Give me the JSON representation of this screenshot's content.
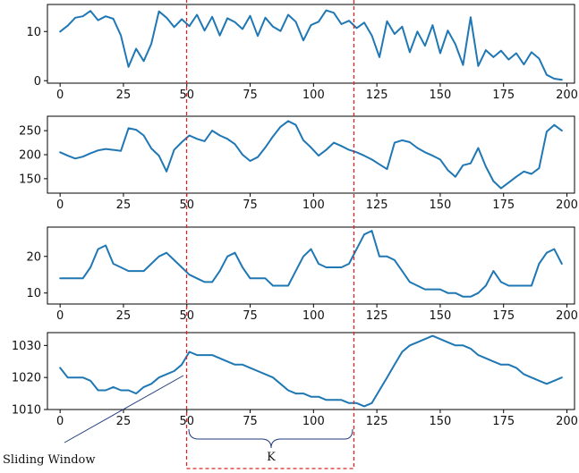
{
  "colors": {
    "line": "#1f77b4",
    "window": "#d62728",
    "annotation": "#1f3b7a",
    "frame": "#000000"
  },
  "annotations": {
    "sliding_window": "Sliding Window",
    "window_length": "K"
  },
  "chart_data": [
    {
      "type": "line",
      "xlim": [
        -5,
        203
      ],
      "ylim": [
        -0.5,
        15.5
      ],
      "xticks": [
        0,
        25,
        50,
        75,
        100,
        125,
        150,
        175,
        200
      ],
      "yticks": [
        0,
        10
      ],
      "x": [
        0,
        3,
        6,
        9,
        12,
        15,
        18,
        21,
        24,
        27,
        30,
        33,
        36,
        39,
        42,
        45,
        48,
        51,
        54,
        57,
        60,
        63,
        66,
        69,
        72,
        75,
        78,
        81,
        84,
        87,
        90,
        93,
        96,
        99,
        102,
        105,
        108,
        111,
        114,
        117,
        120,
        123,
        126,
        129,
        132,
        135,
        138,
        141,
        144,
        147,
        150,
        153,
        156,
        159,
        162,
        165,
        168,
        171,
        174,
        177,
        180,
        183,
        186,
        189,
        192,
        195,
        198
      ],
      "values": [
        10,
        11.2,
        12.8,
        13.1,
        14.2,
        12.3,
        13.1,
        12.6,
        9.2,
        2.8,
        6.5,
        4.0,
        7.5,
        14.1,
        12.8,
        10.9,
        12.5,
        11.1,
        13.4,
        10.2,
        13.0,
        9.2,
        12.7,
        11.9,
        10.5,
        13.2,
        9.1,
        12.8,
        11.0,
        10.1,
        13.4,
        12.0,
        8.2,
        11.3,
        12.0,
        14.3,
        13.8,
        11.5,
        12.2,
        10.7,
        11.8,
        9.2,
        4.8,
        12.1,
        9.5,
        11.0,
        5.8,
        10.0,
        7.1,
        11.3,
        5.6,
        10.2,
        7.4,
        3.2,
        12.9,
        3.0,
        6.2,
        4.8,
        6.1,
        4.3,
        5.6,
        3.3,
        5.8,
        4.5,
        1.2,
        0.4,
        0.2
      ]
    },
    {
      "type": "line",
      "xlim": [
        -5,
        203
      ],
      "ylim": [
        120,
        280
      ],
      "xticks": [
        0,
        25,
        50,
        75,
        100,
        125,
        150,
        175,
        200
      ],
      "yticks": [
        150,
        200,
        250
      ],
      "x": [
        0,
        3,
        6,
        9,
        12,
        15,
        18,
        21,
        24,
        27,
        30,
        33,
        36,
        39,
        42,
        45,
        48,
        51,
        54,
        57,
        60,
        63,
        66,
        69,
        72,
        75,
        78,
        81,
        84,
        87,
        90,
        93,
        96,
        99,
        102,
        105,
        108,
        111,
        114,
        117,
        120,
        123,
        126,
        129,
        132,
        135,
        138,
        141,
        144,
        147,
        150,
        153,
        156,
        159,
        162,
        165,
        168,
        171,
        174,
        177,
        180,
        183,
        186,
        189,
        192,
        195,
        198
      ],
      "values": [
        205,
        198,
        192,
        196,
        203,
        209,
        212,
        210,
        208,
        255,
        252,
        240,
        213,
        198,
        165,
        210,
        226,
        240,
        233,
        228,
        250,
        240,
        233,
        222,
        200,
        187,
        195,
        215,
        238,
        258,
        270,
        262,
        230,
        215,
        198,
        210,
        225,
        218,
        210,
        205,
        198,
        190,
        180,
        170,
        225,
        230,
        226,
        214,
        205,
        198,
        190,
        168,
        154,
        178,
        182,
        214,
        175,
        145,
        130,
        142,
        154,
        165,
        160,
        172,
        248,
        262,
        250
      ]
    },
    {
      "type": "line",
      "xlim": [
        -5,
        203
      ],
      "ylim": [
        7,
        28
      ],
      "xticks": [
        0,
        25,
        50,
        75,
        100,
        125,
        150,
        175,
        200
      ],
      "yticks": [
        10,
        20
      ],
      "x": [
        0,
        3,
        6,
        9,
        12,
        15,
        18,
        21,
        24,
        27,
        30,
        33,
        36,
        39,
        42,
        45,
        48,
        51,
        54,
        57,
        60,
        63,
        66,
        69,
        72,
        75,
        78,
        81,
        84,
        87,
        90,
        93,
        96,
        99,
        102,
        105,
        108,
        111,
        114,
        117,
        120,
        123,
        126,
        129,
        132,
        135,
        138,
        141,
        144,
        147,
        150,
        153,
        156,
        159,
        162,
        165,
        168,
        171,
        174,
        177,
        180,
        183,
        186,
        189,
        192,
        195,
        198
      ],
      "values": [
        14,
        14,
        14,
        14,
        17,
        22,
        23,
        18,
        17,
        16,
        16,
        16,
        18,
        20,
        21,
        19,
        17,
        15,
        14,
        13,
        13,
        16,
        20,
        21,
        17,
        14,
        14,
        14,
        12,
        12,
        12,
        16,
        20,
        22,
        18,
        17,
        17,
        17,
        18,
        22,
        26,
        27,
        20,
        20,
        19,
        16,
        13,
        12,
        11,
        11,
        11,
        10,
        10,
        9,
        9,
        10,
        12,
        16,
        13,
        12,
        12,
        12,
        12,
        18,
        21,
        22,
        18
      ]
    },
    {
      "type": "line",
      "xlim": [
        -5,
        203
      ],
      "ylim": [
        1010,
        1034
      ],
      "xticks": [
        0,
        25,
        50,
        75,
        100,
        125,
        150,
        175,
        200
      ],
      "yticks": [
        1010,
        1020,
        1030
      ],
      "x": [
        0,
        3,
        6,
        9,
        12,
        15,
        18,
        21,
        24,
        27,
        30,
        33,
        36,
        39,
        42,
        45,
        48,
        51,
        54,
        57,
        60,
        63,
        66,
        69,
        72,
        75,
        78,
        81,
        84,
        87,
        90,
        93,
        96,
        99,
        102,
        105,
        108,
        111,
        114,
        117,
        120,
        123,
        126,
        129,
        132,
        135,
        138,
        141,
        144,
        147,
        150,
        153,
        156,
        159,
        162,
        165,
        168,
        171,
        174,
        177,
        180,
        183,
        186,
        189,
        192,
        195,
        198
      ],
      "values": [
        1023,
        1020,
        1020,
        1020,
        1019,
        1016,
        1016,
        1017,
        1016,
        1016,
        1015,
        1017,
        1018,
        1020,
        1021,
        1022,
        1024,
        1028,
        1027,
        1027,
        1027,
        1026,
        1025,
        1024,
        1024,
        1023,
        1022,
        1021,
        1020,
        1018,
        1016,
        1015,
        1015,
        1014,
        1014,
        1013,
        1013,
        1013,
        1012,
        1012,
        1011,
        1012,
        1016,
        1020,
        1024,
        1028,
        1030,
        1031,
        1032,
        1033,
        1032,
        1031,
        1030,
        1030,
        1029,
        1027,
        1026,
        1025,
        1024,
        1024,
        1023,
        1021,
        1020,
        1019,
        1018,
        1019,
        1020
      ]
    }
  ]
}
